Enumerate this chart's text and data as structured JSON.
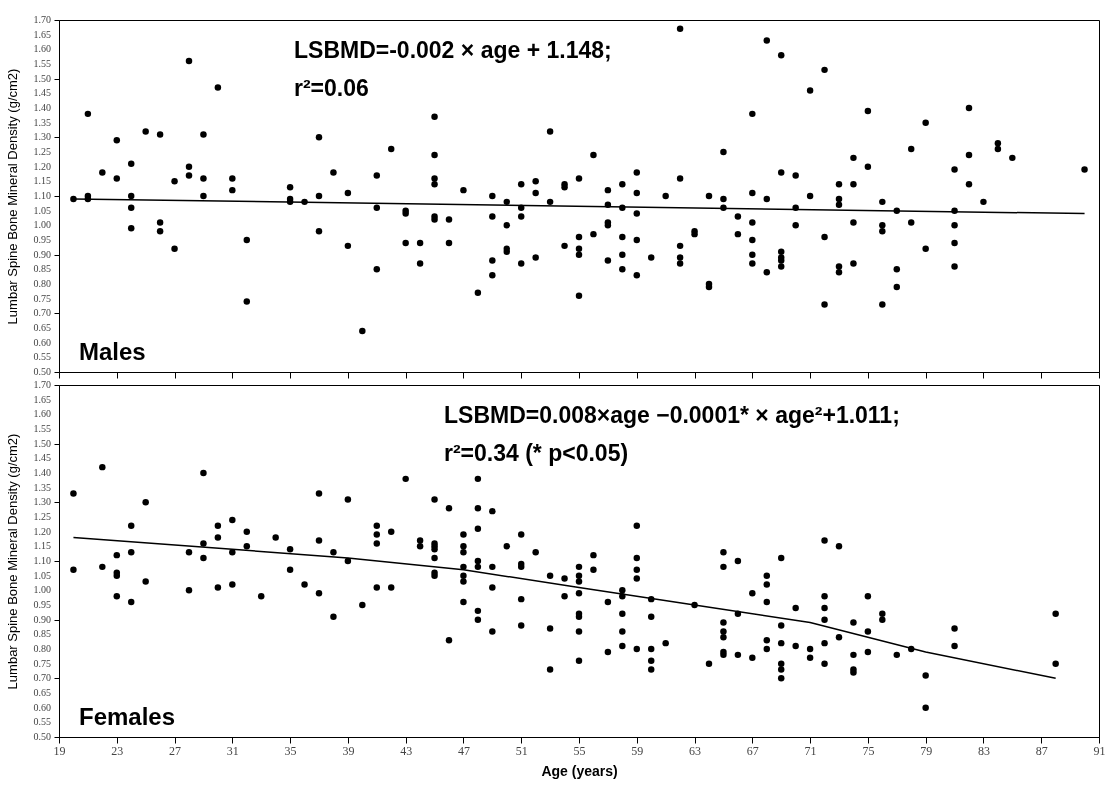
{
  "chart_data": [
    {
      "type": "scatter",
      "ylabel": "Lumbar Spine Bone Mineral Density (g/cm2)",
      "annotations": [
        "LSBMD=-0.002 × age + 1.148;",
        "r²=0.06",
        "Males"
      ],
      "xlim": [
        19,
        91
      ],
      "xticks": [
        19,
        23,
        27,
        31,
        35,
        39,
        43,
        47,
        51,
        55,
        59,
        63,
        67,
        71,
        75,
        79,
        83,
        87,
        91
      ],
      "ylim": [
        0.5,
        1.7
      ],
      "yticks": [
        {
          "value": 0.5,
          "label": "0.50"
        },
        {
          "value": 0.55,
          "label": "0.55"
        },
        {
          "value": 0.6,
          "label": "0.60"
        },
        {
          "value": 0.65,
          "label": "0.65"
        },
        {
          "value": 0.7,
          "label": "0.70"
        },
        {
          "value": 0.75,
          "label": "0.75"
        },
        {
          "value": 0.8,
          "label": "0.80"
        },
        {
          "value": 0.85,
          "label": "0.85"
        },
        {
          "value": 0.9,
          "label": "0.90"
        },
        {
          "value": 0.95,
          "label": "0.95"
        },
        {
          "value": 1.0,
          "label": "1.00"
        },
        {
          "value": 1.05,
          "label": "1.05"
        },
        {
          "value": 1.1,
          "label": "1.10"
        },
        {
          "value": 1.15,
          "label": "1.15"
        },
        {
          "value": 1.2,
          "label": "1.20"
        },
        {
          "value": 1.25,
          "label": "1.25"
        },
        {
          "value": 1.3,
          "label": "1.30"
        },
        {
          "value": 1.35,
          "label": "1.35"
        },
        {
          "value": 1.4,
          "label": "1.40"
        },
        {
          "value": 1.45,
          "label": "1.45"
        },
        {
          "value": 1.5,
          "label": "1.50"
        },
        {
          "value": 1.55,
          "label": "1.55"
        },
        {
          "value": 1.6,
          "label": "1.60"
        },
        {
          "value": 1.65,
          "label": "1.65"
        },
        {
          "value": 1.7,
          "label": "1.70"
        }
      ],
      "tick_labels": "y",
      "marker": "circle",
      "series": [
        {
          "type": "scatter",
          "color": "#000000",
          "x": [
            20,
            21,
            21,
            21,
            22,
            23,
            23,
            24,
            24,
            24,
            24,
            25,
            26,
            26,
            26,
            27,
            27,
            28,
            28,
            28,
            29,
            29,
            29,
            30,
            31,
            31,
            32,
            32,
            35,
            35,
            35,
            36,
            37,
            37,
            37,
            38,
            39,
            39,
            40,
            41,
            41,
            41,
            42,
            43,
            43,
            43,
            44,
            44,
            45,
            45,
            45,
            45,
            45,
            45,
            46,
            46,
            47,
            48,
            49,
            49,
            49,
            49,
            50,
            50,
            50,
            50,
            51,
            51,
            51,
            51,
            52,
            52,
            52,
            53,
            53,
            54,
            54,
            54,
            55,
            55,
            55,
            55,
            55,
            56,
            56,
            57,
            57,
            57,
            57,
            57,
            58,
            58,
            58,
            58,
            58,
            59,
            59,
            59,
            59,
            59,
            60,
            61,
            62,
            62,
            62,
            62,
            62,
            63,
            63,
            64,
            64,
            64,
            65,
            65,
            65,
            66,
            66,
            67,
            67,
            67,
            67,
            67,
            67,
            68,
            68,
            68,
            69,
            69,
            69,
            69,
            69,
            69,
            70,
            70,
            70,
            71,
            71,
            72,
            72,
            72,
            73,
            73,
            73,
            73,
            73,
            74,
            74,
            74,
            74,
            75,
            75,
            76,
            76,
            76,
            76,
            77,
            77,
            77,
            78,
            78,
            79,
            79,
            81,
            81,
            81,
            81,
            81,
            82,
            82,
            82,
            83,
            84,
            84,
            85,
            90
          ],
          "values": [
            1.09,
            1.38,
            1.1,
            1.09,
            1.18,
            1.29,
            1.16,
            1.21,
            1.1,
            1.06,
            0.99,
            1.32,
            1.31,
            1.01,
            0.98,
            1.15,
            0.92,
            1.56,
            1.2,
            1.17,
            1.31,
            1.16,
            1.1,
            1.47,
            1.16,
            1.12,
            0.95,
            0.74,
            1.13,
            1.09,
            1.08,
            1.08,
            1.3,
            1.1,
            0.98,
            1.18,
            1.11,
            0.93,
            0.64,
            1.17,
            1.06,
            0.85,
            1.26,
            1.05,
            1.04,
            0.94,
            0.94,
            0.87,
            1.37,
            1.24,
            1.16,
            1.14,
            1.03,
            1.02,
            1.02,
            0.94,
            1.12,
            0.77,
            1.1,
            1.03,
            0.88,
            0.83,
            1.08,
            1.0,
            0.92,
            0.91,
            1.14,
            1.06,
            1.03,
            0.87,
            1.15,
            1.11,
            0.89,
            1.32,
            1.08,
            1.14,
            1.13,
            0.93,
            1.16,
            0.96,
            0.92,
            0.9,
            0.76,
            1.24,
            0.97,
            1.12,
            1.07,
            1.01,
            1.0,
            0.88,
            1.14,
            1.06,
            0.96,
            0.9,
            0.85,
            1.18,
            1.11,
            1.04,
            0.95,
            0.83,
            0.89,
            1.1,
            1.67,
            1.16,
            0.93,
            0.89,
            0.87,
            0.98,
            0.97,
            1.1,
            0.8,
            0.79,
            1.25,
            1.09,
            1.06,
            1.03,
            0.97,
            1.38,
            1.11,
            1.01,
            0.95,
            0.9,
            0.87,
            1.63,
            1.09,
            0.84,
            1.58,
            1.18,
            0.91,
            0.89,
            0.88,
            0.86,
            1.17,
            1.06,
            1.0,
            1.46,
            1.1,
            1.53,
            0.96,
            0.73,
            1.14,
            1.09,
            1.07,
            0.86,
            0.84,
            1.23,
            1.14,
            1.01,
            0.87,
            1.39,
            1.2,
            1.08,
            1.0,
            0.98,
            0.73,
            1.05,
            0.85,
            0.79,
            1.26,
            1.01,
            1.35,
            0.92,
            1.19,
            1.05,
            1.0,
            0.94,
            0.86,
            1.4,
            1.24,
            1.14,
            1.08,
            1.28,
            1.26,
            1.23,
            1.19
          ]
        },
        {
          "type": "line",
          "marker": "none",
          "color": "#000000",
          "x": [
            20,
            90
          ],
          "values": [
            1.09,
            1.04
          ]
        }
      ]
    },
    {
      "type": "scatter",
      "xlabel": "Age (years)",
      "ylabel": "Lumbar Spine Bone Mineral Density (g/cm2)",
      "annotations": [
        "LSBMD=0.008×age −0.0001* × age²+1.011;",
        "r²=0.34 (* p<0.05)",
        "Females"
      ],
      "xlim": [
        19,
        91
      ],
      "xticks": [
        19,
        23,
        27,
        31,
        35,
        39,
        43,
        47,
        51,
        55,
        59,
        63,
        67,
        71,
        75,
        79,
        83,
        87,
        91
      ],
      "ylim": [
        0.5,
        1.7
      ],
      "yticks": [
        {
          "value": 0.5,
          "label": "0.50"
        },
        {
          "value": 0.55,
          "label": "0.55"
        },
        {
          "value": 0.6,
          "label": "0.60"
        },
        {
          "value": 0.65,
          "label": "0.65"
        },
        {
          "value": 0.7,
          "label": "0.70"
        },
        {
          "value": 0.75,
          "label": "0.75"
        },
        {
          "value": 0.8,
          "label": "0.80"
        },
        {
          "value": 0.85,
          "label": "0.85"
        },
        {
          "value": 0.9,
          "label": "0.90"
        },
        {
          "value": 0.95,
          "label": "0.95"
        },
        {
          "value": 1.0,
          "label": "1.00"
        },
        {
          "value": 1.05,
          "label": "1.05"
        },
        {
          "value": 1.1,
          "label": "1.10"
        },
        {
          "value": 1.15,
          "label": "1.15"
        },
        {
          "value": 1.2,
          "label": "1.20"
        },
        {
          "value": 1.25,
          "label": "1.25"
        },
        {
          "value": 1.3,
          "label": "1.30"
        },
        {
          "value": 1.35,
          "label": "1.35"
        },
        {
          "value": 1.4,
          "label": "1.40"
        },
        {
          "value": 1.45,
          "label": "1.45"
        },
        {
          "value": 1.5,
          "label": "1.50"
        },
        {
          "value": 1.55,
          "label": "1.55"
        },
        {
          "value": 1.6,
          "label": "1.60"
        },
        {
          "value": 1.65,
          "label": "1.65"
        },
        {
          "value": 1.7,
          "label": "1.70"
        }
      ],
      "marker": "circle",
      "series": [
        {
          "type": "scatter",
          "color": "#000000",
          "x": [
            20,
            20,
            22,
            22,
            23,
            23,
            23,
            23,
            24,
            24,
            24,
            25,
            25,
            28,
            28,
            29,
            29,
            29,
            30,
            30,
            30,
            31,
            31,
            31,
            32,
            32,
            33,
            34,
            35,
            35,
            36,
            37,
            37,
            37,
            38,
            38,
            39,
            39,
            40,
            41,
            41,
            41,
            41,
            42,
            42,
            43,
            44,
            44,
            45,
            45,
            45,
            45,
            45,
            45,
            45,
            46,
            46,
            47,
            47,
            47,
            47,
            47,
            47,
            47,
            48,
            48,
            48,
            48,
            48,
            48,
            48,
            49,
            49,
            49,
            49,
            50,
            51,
            51,
            51,
            51,
            51,
            52,
            53,
            53,
            53,
            54,
            54,
            55,
            55,
            55,
            55,
            55,
            55,
            55,
            55,
            56,
            56,
            57,
            57,
            58,
            58,
            58,
            58,
            58,
            59,
            59,
            59,
            59,
            59,
            60,
            60,
            60,
            60,
            60,
            61,
            63,
            64,
            65,
            65,
            65,
            65,
            65,
            65,
            65,
            66,
            66,
            66,
            67,
            67,
            68,
            68,
            68,
            68,
            68,
            69,
            69,
            69,
            69,
            69,
            69,
            70,
            70,
            71,
            71,
            72,
            72,
            72,
            72,
            72,
            72,
            73,
            73,
            74,
            74,
            74,
            74,
            75,
            75,
            75,
            76,
            76,
            77,
            78,
            79,
            79,
            81,
            81,
            88,
            88
          ],
          "values": [
            1.33,
            1.07,
            1.42,
            1.08,
            1.12,
            1.06,
            1.05,
            0.98,
            1.22,
            1.13,
            0.96,
            1.3,
            1.03,
            1.13,
            1.0,
            1.4,
            1.16,
            1.11,
            1.22,
            1.18,
            1.01,
            1.24,
            1.13,
            1.02,
            1.2,
            1.15,
            0.98,
            1.18,
            1.14,
            1.07,
            1.02,
            1.33,
            1.17,
            0.99,
            1.13,
            0.91,
            1.31,
            1.1,
            0.95,
            1.22,
            1.19,
            1.16,
            1.01,
            1.2,
            1.01,
            1.38,
            1.17,
            1.15,
            1.31,
            1.16,
            1.15,
            1.14,
            1.11,
            1.06,
            1.05,
            1.28,
            0.83,
            1.19,
            1.15,
            1.13,
            1.08,
            1.05,
            1.03,
            0.96,
            1.38,
            1.28,
            1.21,
            1.1,
            1.08,
            0.93,
            0.9,
            1.27,
            1.08,
            1.01,
            0.86,
            1.15,
            1.19,
            1.09,
            1.08,
            0.97,
            0.88,
            1.13,
            1.05,
            0.87,
            0.73,
            1.04,
            0.98,
            1.08,
            1.05,
            1.03,
            0.99,
            0.92,
            0.91,
            0.86,
            0.76,
            1.12,
            1.07,
            0.96,
            0.79,
            1.0,
            0.98,
            0.92,
            0.86,
            0.81,
            1.22,
            1.11,
            1.07,
            1.04,
            0.8,
            0.97,
            0.91,
            0.8,
            0.76,
            0.73,
            0.82,
            0.95,
            0.75,
            1.13,
            1.08,
            0.89,
            0.86,
            0.84,
            0.79,
            0.78,
            1.1,
            0.92,
            0.78,
            0.99,
            0.77,
            1.05,
            1.02,
            0.96,
            0.83,
            0.8,
            1.11,
            0.88,
            0.82,
            0.75,
            0.73,
            0.7,
            0.94,
            0.81,
            0.8,
            0.77,
            1.17,
            0.98,
            0.94,
            0.9,
            0.82,
            0.75,
            1.15,
            0.84,
            0.89,
            0.78,
            0.73,
            0.72,
            0.98,
            0.86,
            0.79,
            0.92,
            0.9,
            0.78,
            0.8,
            0.71,
            0.6,
            0.87,
            0.81,
            0.92,
            0.75
          ]
        },
        {
          "type": "line",
          "marker": "none",
          "color": "#000000",
          "x": [
            20,
            31,
            39,
            47,
            55,
            63,
            71,
            79,
            88
          ],
          "values": [
            1.18,
            1.14,
            1.11,
            1.07,
            1.01,
            0.95,
            0.89,
            0.79,
            0.7
          ]
        }
      ]
    }
  ]
}
